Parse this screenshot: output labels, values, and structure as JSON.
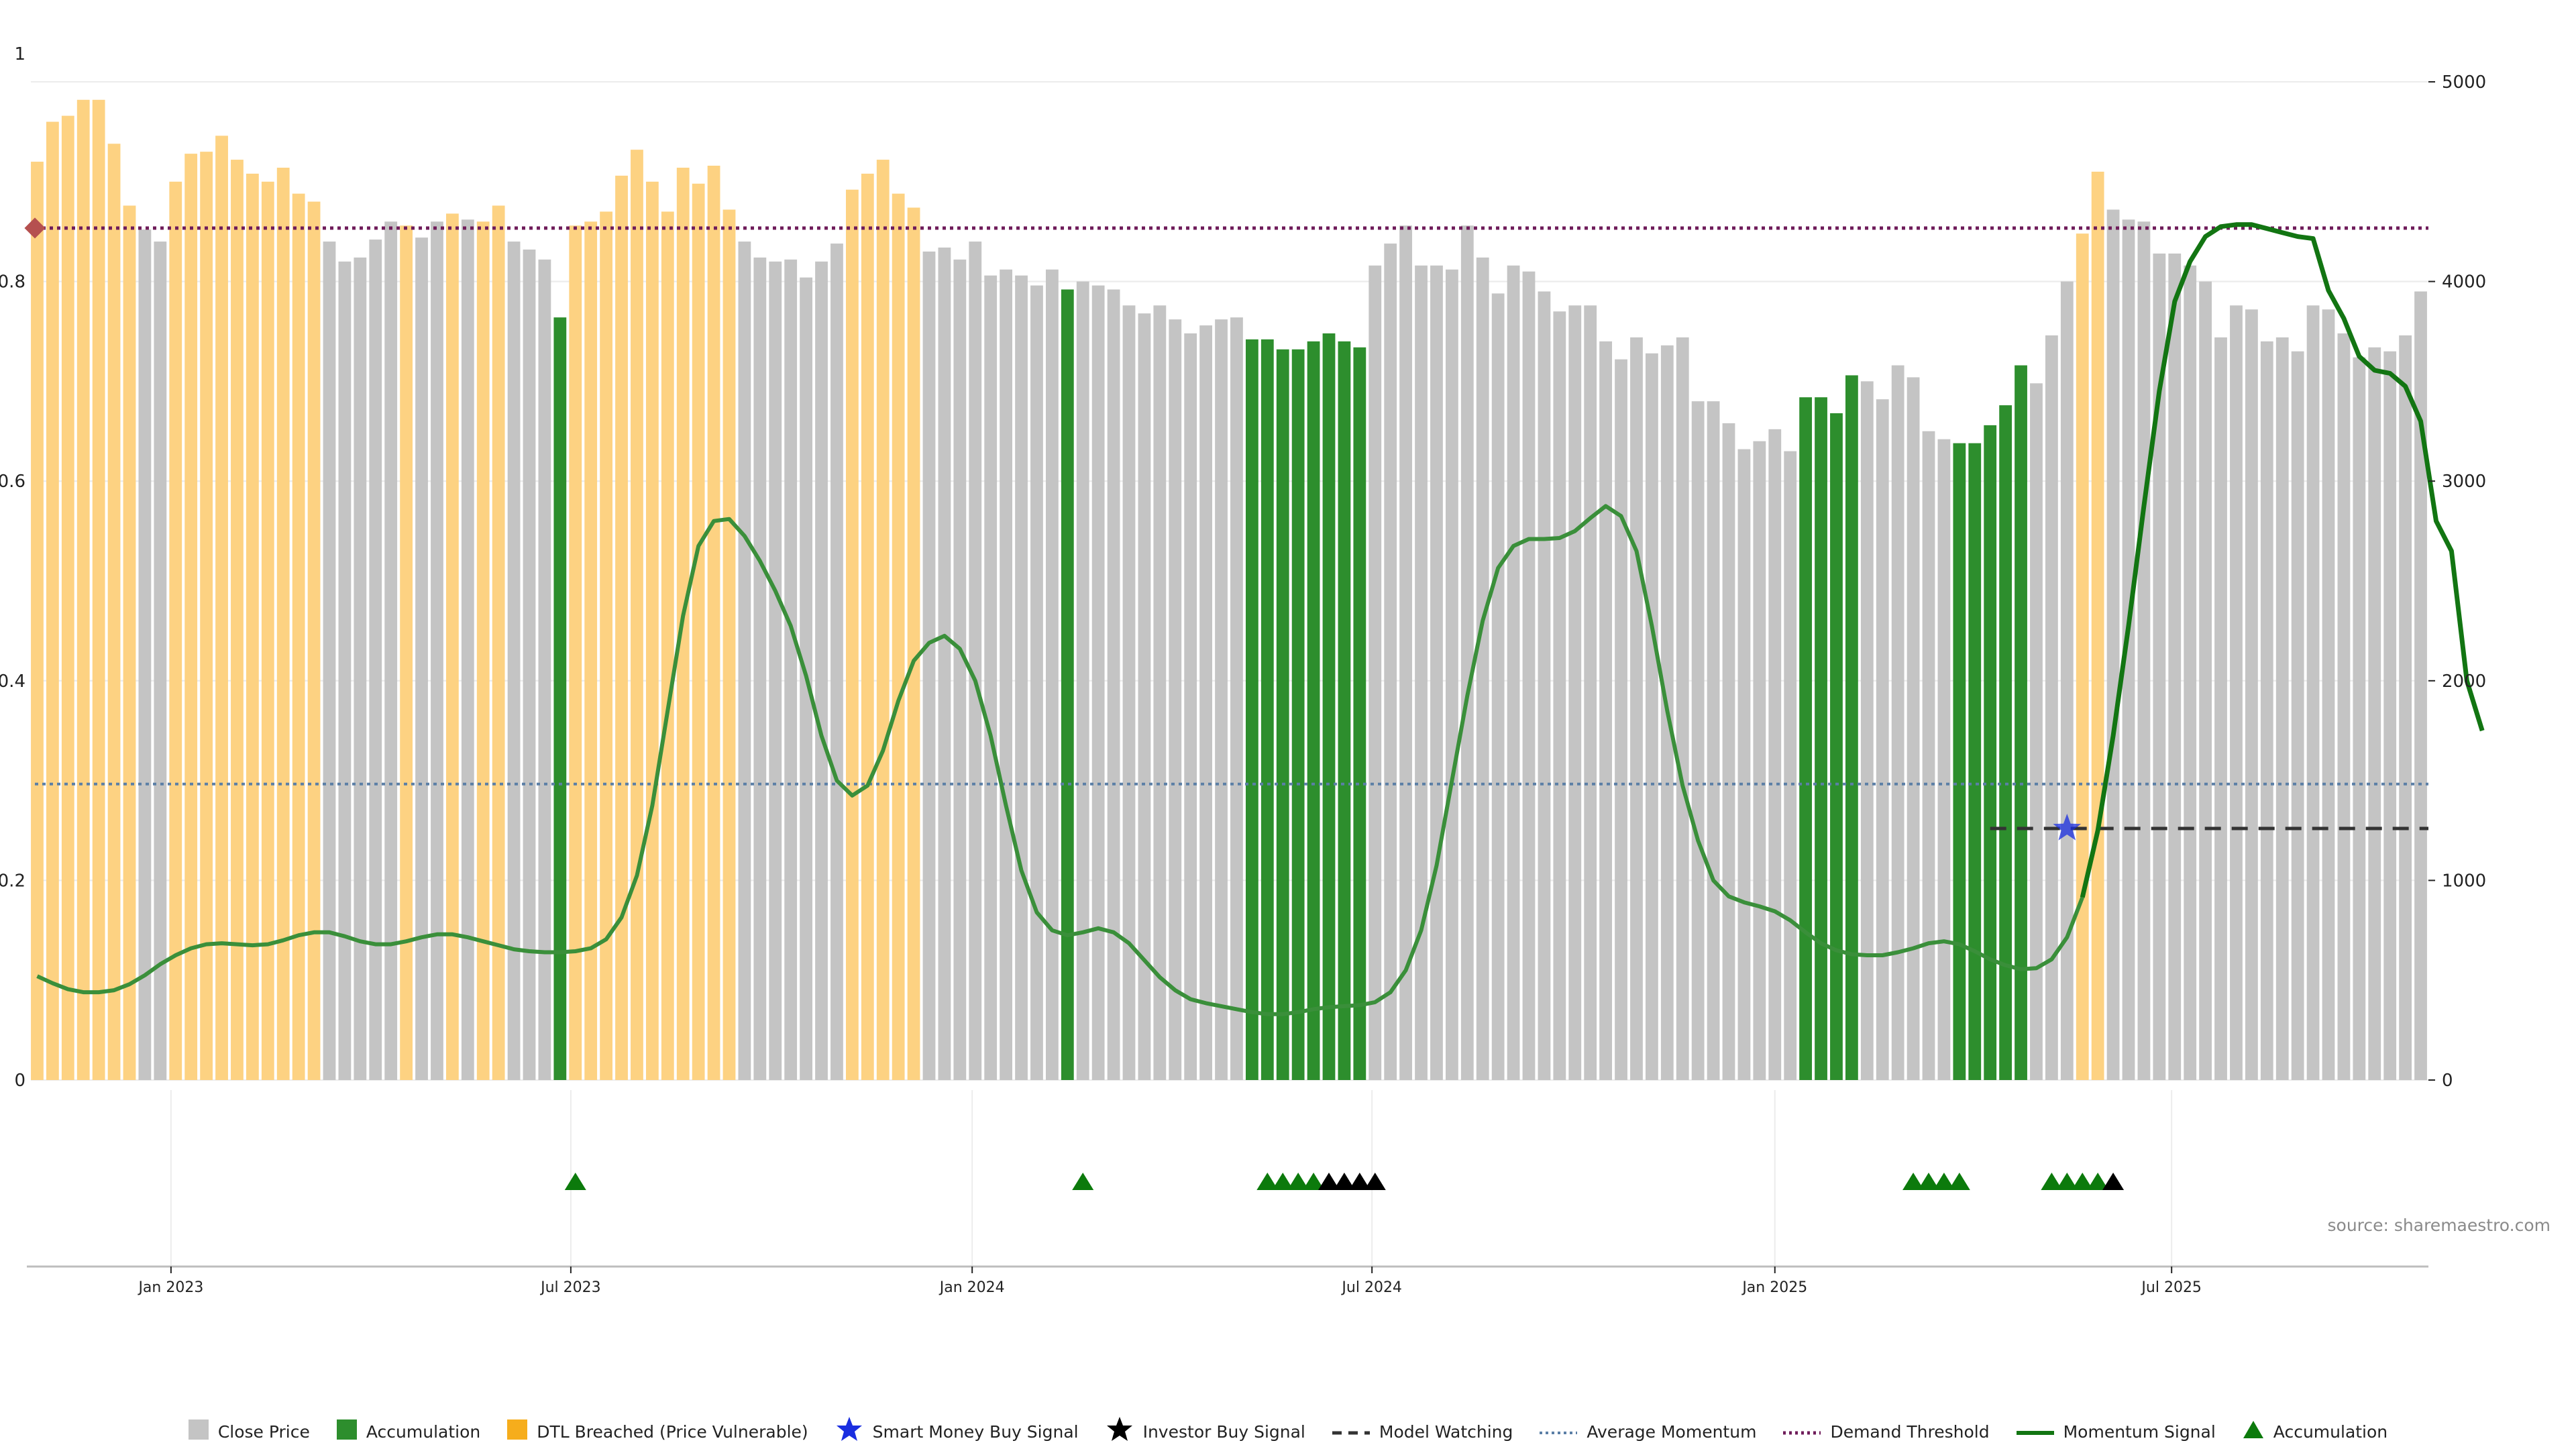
{
  "chart_data": {
    "type": "bar",
    "title": "",
    "xlabel": "",
    "ylabel_left": "",
    "ylabel_right": "",
    "left_axis": {
      "range": [
        0,
        1
      ],
      "ticks": [
        "0",
        "0.2",
        "0.4",
        "0.6",
        "0.8",
        "1"
      ]
    },
    "right_axis": {
      "range": [
        0,
        5000
      ],
      "ticks": [
        "0",
        "1000",
        "2000",
        "3000",
        "4000",
        "5000"
      ]
    },
    "x_ticks": [
      "Jan 2023",
      "Jul 2023",
      "Jan 2024",
      "Jul 2024",
      "Jan 2025",
      "Jul 2025"
    ],
    "grid": true,
    "legend_position": "bottom",
    "colors": {
      "close": "#c4c4c4",
      "accumulation": "#2d8e2d",
      "dtl": "#fdd282",
      "momentum": "#3a8f3a",
      "momentum_dark": "#127512",
      "demand": "#6f1c5a",
      "average": "#5b7fa6",
      "model": "#333333",
      "smart_money": "#1a2ee0",
      "investor": "#000000",
      "marker_diamond": "#b5504f"
    },
    "demand_threshold": 0.8535,
    "average_momentum": 0.2965,
    "model_watching": {
      "value": 0.252,
      "from_index": 127,
      "to_index": 155
    },
    "smart_money_signal": {
      "index": 132,
      "value": 0.252
    },
    "series": {
      "close_price": [
        4600,
        4800,
        4830,
        4910,
        4910,
        4690,
        4380,
        4260,
        4200,
        4500,
        4640,
        4650,
        4730,
        4610,
        4540,
        4500,
        4570,
        4440,
        4400,
        4200,
        4100,
        4120,
        4210,
        4300,
        4280,
        4220,
        4300,
        4340,
        4310,
        4300,
        4380,
        4200,
        4160,
        4110,
        3820,
        4280,
        4300,
        4350,
        4530,
        4660,
        4500,
        4350,
        4570,
        4490,
        4580,
        4360,
        4200,
        4120,
        4100,
        4110,
        4020,
        4100,
        4190,
        4460,
        4540,
        4610,
        4440,
        4370,
        4150,
        4170,
        4110,
        4200,
        4030,
        4060,
        4030,
        3980,
        4060,
        3960,
        4000,
        3980,
        3960,
        3880,
        3840,
        3880,
        3810,
        3740,
        3780,
        3810,
        3820,
        3710,
        3710,
        3660,
        3660,
        3700,
        3740,
        3700,
        3670,
        4080,
        4190,
        4280,
        4080,
        4080,
        4060,
        4280,
        4120,
        3940,
        4080,
        4050,
        3950,
        3850,
        3880,
        3880,
        3700,
        3610,
        3720,
        3640,
        3680,
        3720,
        3400,
        3400,
        3290,
        3160,
        3200,
        3260,
        3150,
        3420,
        3420,
        3340,
        3530,
        3500,
        3410,
        3580,
        3520,
        3250,
        3210,
        3190,
        3190,
        3280,
        3380,
        3580,
        3490,
        3730,
        4000,
        4240,
        4550,
        4360,
        4310,
        4300,
        4140,
        4140,
        4080,
        4000,
        3720,
        3880,
        3860,
        3700,
        3720,
        3650,
        3880,
        3860,
        3740,
        3620,
        3670,
        3650,
        3730,
        3950
      ],
      "bar_category": [
        "D",
        "D",
        "D",
        "D",
        "D",
        "D",
        "D",
        "C",
        "C",
        "D",
        "D",
        "D",
        "D",
        "D",
        "D",
        "D",
        "D",
        "D",
        "D",
        "C",
        "C",
        "C",
        "C",
        "C",
        "D",
        "C",
        "C",
        "D",
        "C",
        "D",
        "D",
        "C",
        "C",
        "C",
        "A",
        "D",
        "D",
        "D",
        "D",
        "D",
        "D",
        "D",
        "D",
        "D",
        "D",
        "D",
        "C",
        "C",
        "C",
        "C",
        "C",
        "C",
        "C",
        "D",
        "D",
        "D",
        "D",
        "D",
        "C",
        "C",
        "C",
        "C",
        "C",
        "C",
        "C",
        "C",
        "C",
        "A",
        "C",
        "C",
        "C",
        "C",
        "C",
        "C",
        "C",
        "C",
        "C",
        "C",
        "C",
        "A",
        "A",
        "A",
        "A",
        "A",
        "A",
        "A",
        "A",
        "C",
        "C",
        "C",
        "C",
        "C",
        "C",
        "C",
        "C",
        "C",
        "C",
        "C",
        "C",
        "C",
        "C",
        "C",
        "C",
        "C",
        "C",
        "C",
        "C",
        "C",
        "C",
        "C",
        "C",
        "C",
        "C",
        "C",
        "C",
        "A",
        "A",
        "A",
        "A",
        "C",
        "C",
        "C",
        "C",
        "C",
        "C",
        "A",
        "A",
        "A",
        "A",
        "A",
        "C",
        "C",
        "C",
        "D",
        "D",
        "C",
        "C",
        "C",
        "C",
        "C",
        "C",
        "C",
        "C",
        "C",
        "C",
        "C",
        "C",
        "C",
        "C",
        "C",
        "C",
        "C",
        "C",
        "C",
        "C",
        "C"
      ],
      "momentum_signal": [
        0.104,
        0.097,
        0.091,
        0.088,
        0.088,
        0.09,
        0.096,
        0.105,
        0.116,
        0.125,
        0.132,
        0.136,
        0.137,
        0.136,
        0.135,
        0.136,
        0.14,
        0.145,
        0.148,
        0.148,
        0.144,
        0.139,
        0.136,
        0.136,
        0.139,
        0.143,
        0.146,
        0.146,
        0.143,
        0.139,
        0.135,
        0.131,
        0.129,
        0.128,
        0.128,
        0.129,
        0.132,
        0.141,
        0.163,
        0.205,
        0.275,
        0.37,
        0.465,
        0.535,
        0.56,
        0.562,
        0.545,
        0.52,
        0.49,
        0.455,
        0.405,
        0.345,
        0.3,
        0.285,
        0.295,
        0.33,
        0.38,
        0.42,
        0.438,
        0.445,
        0.432,
        0.4,
        0.345,
        0.275,
        0.21,
        0.168,
        0.15,
        0.145,
        0.148,
        0.152,
        0.148,
        0.137,
        0.12,
        0.103,
        0.09,
        0.081,
        0.077,
        0.074,
        0.071,
        0.068,
        0.066,
        0.066,
        0.068,
        0.071,
        0.073,
        0.074,
        0.075,
        0.078,
        0.088,
        0.11,
        0.15,
        0.215,
        0.3,
        0.385,
        0.46,
        0.513,
        0.535,
        0.542,
        0.542,
        0.543,
        0.55,
        0.563,
        0.575,
        0.565,
        0.53,
        0.455,
        0.37,
        0.295,
        0.24,
        0.2,
        0.184,
        0.178,
        0.174,
        0.169,
        0.16,
        0.148,
        0.137,
        0.13,
        0.126,
        0.125,
        0.125,
        0.128,
        0.132,
        0.137,
        0.139,
        0.136,
        0.129,
        0.121,
        0.115,
        0.111,
        0.112,
        0.121,
        0.143,
        0.183,
        0.25,
        0.345,
        0.455,
        0.575,
        0.69,
        0.78,
        0.82,
        0.845,
        0.855,
        0.857,
        0.857,
        0.853,
        0.849,
        0.845,
        0.843,
        0.791,
        0.763,
        0.725,
        0.711,
        0.708,
        0.695,
        0.66,
        0.56,
        0.53,
        0.4,
        0.35
      ],
      "accumulation_markers": [
        35,
        68,
        80,
        81,
        82,
        83,
        122,
        123,
        124,
        125,
        131,
        132,
        133,
        134
      ],
      "investor_markers": [
        84,
        85,
        86,
        87,
        135
      ]
    }
  },
  "source": "source: sharemaestro.com",
  "legend": [
    {
      "key": "close",
      "label": "Close Price",
      "swatch": "square-gray"
    },
    {
      "key": "accumulation",
      "label": "Accumulation",
      "swatch": "square-green"
    },
    {
      "key": "dtl",
      "label": "DTL Breached (Price Vulnerable)",
      "swatch": "square-orange"
    },
    {
      "key": "smart_money",
      "label": "Smart Money Buy Signal",
      "swatch": "star-blue"
    },
    {
      "key": "investor",
      "label": "Investor Buy Signal",
      "swatch": "star-black"
    },
    {
      "key": "model",
      "label": "Model Watching",
      "swatch": "dash-black"
    },
    {
      "key": "average",
      "label": "Average Momentum",
      "swatch": "dot-blue"
    },
    {
      "key": "demand",
      "label": "Demand Threshold",
      "swatch": "dot-purple"
    },
    {
      "key": "momentum",
      "label": "Momentum Signal",
      "swatch": "line-green"
    },
    {
      "key": "accum_marker",
      "label": "Accumulation",
      "swatch": "triangle-green"
    }
  ]
}
